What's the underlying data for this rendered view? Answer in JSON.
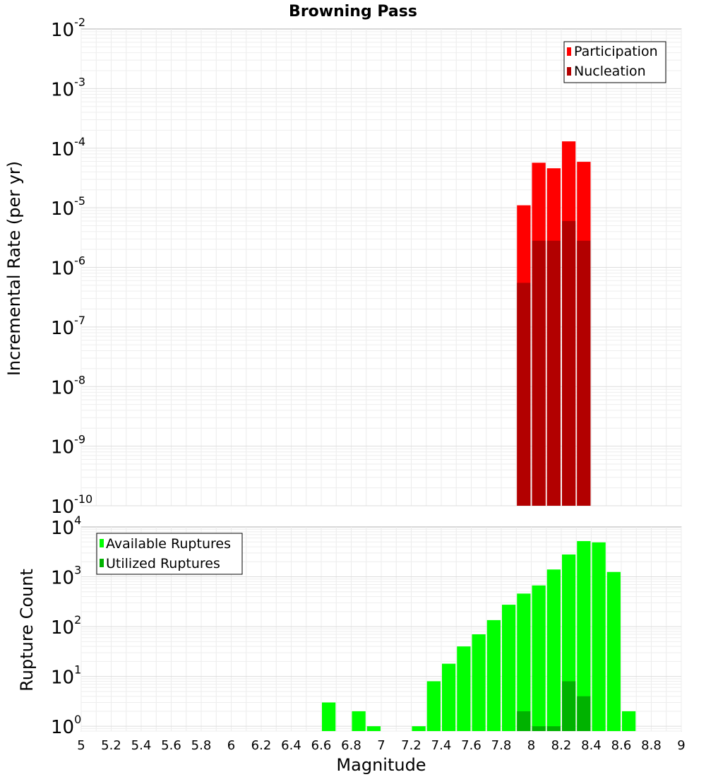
{
  "chart_data": [
    {
      "type": "bar",
      "title": "Browning Pass",
      "ylabel": "Incremental Rate (per yr)",
      "xlabel": "",
      "xlim": [
        5,
        9
      ],
      "ylim": [
        1e-10,
        0.01
      ],
      "yscale": "log",
      "bin_width": 0.1,
      "y_ticks": [
        {
          "base": "10",
          "exp": "-10",
          "value": 1e-10
        },
        {
          "base": "10",
          "exp": "-9",
          "value": 1e-09
        },
        {
          "base": "10",
          "exp": "-8",
          "value": 1e-08
        },
        {
          "base": "10",
          "exp": "-7",
          "value": 1e-07
        },
        {
          "base": "10",
          "exp": "-6",
          "value": 1e-06
        },
        {
          "base": "10",
          "exp": "-5",
          "value": 1e-05
        },
        {
          "base": "10",
          "exp": "-4",
          "value": 0.0001
        },
        {
          "base": "10",
          "exp": "-3",
          "value": 0.001
        },
        {
          "base": "10",
          "exp": "-2",
          "value": 0.01
        }
      ],
      "legend": {
        "position": "top-right",
        "entries": [
          "Participation",
          "Nucleation"
        ]
      },
      "series": [
        {
          "name": "Participation",
          "color": "#ff0000",
          "x": [
            7.95,
            8.05,
            8.15,
            8.25,
            8.35
          ],
          "values": [
            1.1e-05,
            5.7e-05,
            4.6e-05,
            0.00013,
            5.9e-05
          ]
        },
        {
          "name": "Nucleation",
          "color": "#b20000",
          "x": [
            7.95,
            8.05,
            8.15,
            8.25,
            8.35
          ],
          "values": [
            5.5e-07,
            2.8e-06,
            2.8e-06,
            6e-06,
            2.8e-06
          ]
        }
      ]
    },
    {
      "type": "bar",
      "title": "",
      "ylabel": "Rupture Count",
      "xlabel": "Magnitude",
      "xlim": [
        5,
        9
      ],
      "ylim": [
        0.8,
        10000
      ],
      "yscale": "log",
      "bin_width": 0.1,
      "x_ticks": [
        "5",
        "5.2",
        "5.4",
        "5.6",
        "5.8",
        "6",
        "6.2",
        "6.4",
        "6.6",
        "6.8",
        "7",
        "7.2",
        "7.4",
        "7.6",
        "7.8",
        "8",
        "8.2",
        "8.4",
        "8.6",
        "8.8",
        "9"
      ],
      "y_ticks": [
        {
          "base": "10",
          "exp": "0",
          "value": 1
        },
        {
          "base": "10",
          "exp": "1",
          "value": 10
        },
        {
          "base": "10",
          "exp": "2",
          "value": 100
        },
        {
          "base": "10",
          "exp": "3",
          "value": 1000
        },
        {
          "base": "10",
          "exp": "4",
          "value": 10000
        }
      ],
      "legend": {
        "position": "top-left",
        "entries": [
          "Available Ruptures",
          "Utilized Ruptures"
        ]
      },
      "series": [
        {
          "name": "Available Ruptures",
          "color": "#00ff00",
          "x": [
            6.65,
            6.85,
            6.95,
            7.25,
            7.35,
            7.45,
            7.55,
            7.65,
            7.75,
            7.85,
            7.95,
            8.05,
            8.15,
            8.25,
            8.35,
            8.45,
            8.55,
            8.65
          ],
          "values": [
            3,
            2,
            1,
            1,
            8,
            18,
            40,
            70,
            135,
            275,
            460,
            670,
            1400,
            2800,
            5200,
            4900,
            1250,
            2
          ]
        },
        {
          "name": "Utilized Ruptures",
          "color": "#00b200",
          "x": [
            7.95,
            8.05,
            8.15,
            8.25,
            8.35
          ],
          "values": [
            2,
            1,
            1,
            8,
            4
          ]
        }
      ]
    }
  ]
}
